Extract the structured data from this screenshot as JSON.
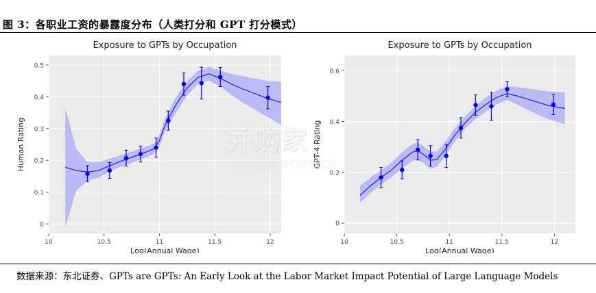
{
  "figure": {
    "title": "图 3：各职业工资的暴露度分布（人类打分和 GPT 打分模式）",
    "source": "数据来源：东北证券、GPTs are GPTs: An Early Look at the Labor Market Impact Potential of Large Language Models",
    "watermark_main": "并购家",
    "watermark_sub": "行业报告 IPOIPO.CN"
  },
  "chart_data": [
    {
      "type": "line",
      "title": "Exposure to GPTs by Occupation",
      "xlabel": "Log(Annual Wage)",
      "ylabel": "Human Rating",
      "xlim": [
        10,
        12.1
      ],
      "ylim": [
        -0.03,
        0.53
      ],
      "xticks": [
        10,
        10.5,
        11,
        11.5,
        12
      ],
      "xtick_labels": [
        "10",
        "10.5",
        "11",
        "11.5",
        "12"
      ],
      "yticks": [
        0,
        0.1,
        0.2,
        0.3,
        0.4,
        0.5
      ],
      "ytick_labels": [
        "0",
        "0.1",
        "0.2",
        "0.3",
        "0.4",
        "0.5"
      ],
      "grid": true,
      "line_color": "#2b2bd9",
      "band_color": "#b3b3f5",
      "marker_color": "#0000ee",
      "fit_curve": {
        "x": [
          10.15,
          10.25,
          10.35,
          10.45,
          10.55,
          10.65,
          10.75,
          10.85,
          10.95,
          11.0,
          11.05,
          11.15,
          11.25,
          11.35,
          11.45,
          11.55,
          11.65,
          11.75,
          11.85,
          11.95,
          12.05,
          12.1
        ],
        "y": [
          0.178,
          0.168,
          0.163,
          0.168,
          0.183,
          0.197,
          0.21,
          0.222,
          0.236,
          0.262,
          0.31,
          0.375,
          0.428,
          0.461,
          0.472,
          0.458,
          0.44,
          0.425,
          0.412,
          0.398,
          0.387,
          0.382
        ],
        "lower": [
          -0.01,
          0.105,
          0.135,
          0.145,
          0.165,
          0.18,
          0.192,
          0.205,
          0.22,
          0.242,
          0.29,
          0.35,
          0.405,
          0.44,
          0.45,
          0.432,
          0.405,
          0.382,
          0.362,
          0.342,
          0.322,
          0.31
        ],
        "upper": [
          0.365,
          0.235,
          0.195,
          0.195,
          0.205,
          0.216,
          0.228,
          0.24,
          0.252,
          0.282,
          0.33,
          0.4,
          0.45,
          0.482,
          0.494,
          0.482,
          0.472,
          0.465,
          0.458,
          0.452,
          0.448,
          0.447
        ]
      },
      "points": {
        "x": [
          10.35,
          10.55,
          10.7,
          10.83,
          10.97,
          11.08,
          11.22,
          11.38,
          11.55,
          11.98
        ],
        "y": [
          0.158,
          0.168,
          0.207,
          0.22,
          0.24,
          0.325,
          0.44,
          0.443,
          0.462,
          0.397
        ],
        "err": [
          0.025,
          0.025,
          0.025,
          0.025,
          0.03,
          0.03,
          0.035,
          0.05,
          0.03,
          0.035
        ]
      }
    },
    {
      "type": "line",
      "title": "Exposure to GPTs by Occupation",
      "xlabel": "Log(Annual Wage)",
      "ylabel": "GPT-4 Rating",
      "xlim": [
        10,
        12.2
      ],
      "ylim": [
        -0.04,
        0.66
      ],
      "xticks": [
        10,
        10.5,
        11,
        11.5,
        12
      ],
      "xtick_labels": [
        "10",
        "10.5",
        "11",
        "11.5",
        "12"
      ],
      "yticks": [
        0,
        0.2,
        0.4,
        0.6
      ],
      "ytick_labels": [
        "0",
        "0.2",
        "0.4",
        "0.6"
      ],
      "grid": true,
      "line_color": "#2b2bd9",
      "band_color": "#b3b3f5",
      "marker_color": "#0000ee",
      "fit_curve": {
        "x": [
          10.15,
          10.25,
          10.35,
          10.45,
          10.55,
          10.65,
          10.7,
          10.75,
          10.82,
          10.88,
          10.95,
          11.05,
          11.15,
          11.25,
          11.35,
          11.45,
          11.55,
          11.65,
          11.75,
          11.85,
          11.95,
          12.05,
          12.1
        ],
        "y": [
          0.11,
          0.148,
          0.18,
          0.21,
          0.248,
          0.28,
          0.285,
          0.272,
          0.248,
          0.25,
          0.285,
          0.345,
          0.395,
          0.437,
          0.468,
          0.495,
          0.51,
          0.5,
          0.488,
          0.475,
          0.462,
          0.455,
          0.452
        ],
        "lower": [
          0.08,
          0.12,
          0.152,
          0.182,
          0.215,
          0.245,
          0.25,
          0.238,
          0.215,
          0.222,
          0.258,
          0.32,
          0.372,
          0.41,
          0.44,
          0.468,
          0.485,
          0.466,
          0.445,
          0.425,
          0.408,
          0.396,
          0.39
        ],
        "upper": [
          0.148,
          0.18,
          0.208,
          0.238,
          0.28,
          0.312,
          0.318,
          0.305,
          0.282,
          0.282,
          0.314,
          0.372,
          0.42,
          0.462,
          0.495,
          0.522,
          0.54,
          0.535,
          0.53,
          0.524,
          0.518,
          0.516,
          0.515
        ]
      },
      "points": {
        "x": [
          10.35,
          10.55,
          10.7,
          10.82,
          10.97,
          11.11,
          11.25,
          11.4,
          11.55,
          11.99
        ],
        "y": [
          0.18,
          0.21,
          0.289,
          0.265,
          0.265,
          0.375,
          0.465,
          0.46,
          0.527,
          0.467
        ],
        "err": [
          0.04,
          0.035,
          0.04,
          0.04,
          0.045,
          0.04,
          0.04,
          0.055,
          0.03,
          0.04
        ]
      }
    }
  ]
}
